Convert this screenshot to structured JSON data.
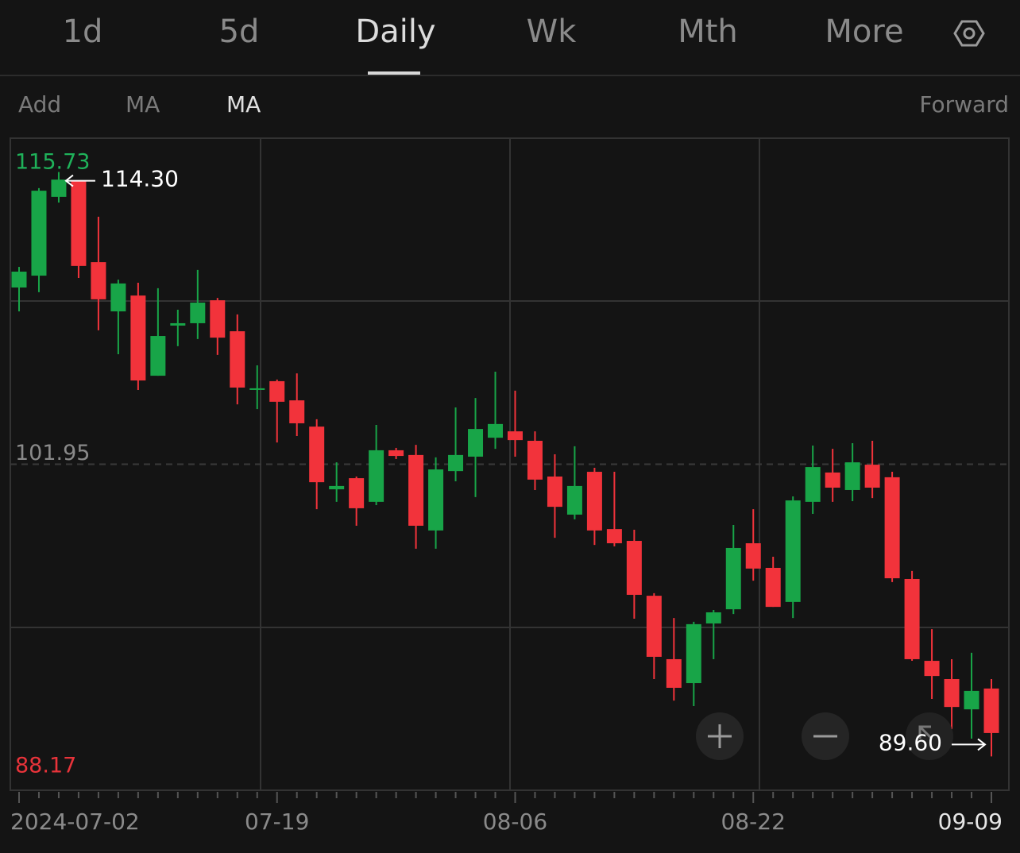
{
  "tabs": [
    "1d",
    "5d",
    "Daily",
    "Wk",
    "Mth",
    "More"
  ],
  "toolbar": {
    "left": [
      "Add",
      "MA",
      "MA"
    ],
    "right": "Forward"
  },
  "chart_data": {
    "type": "candlestick",
    "categories": [
      "2024-07-02",
      null,
      null,
      null,
      null,
      null,
      null,
      null,
      null,
      null,
      null,
      null,
      null,
      "07-19",
      null,
      null,
      null,
      null,
      null,
      null,
      null,
      null,
      null,
      null,
      null,
      "08-06",
      null,
      null,
      null,
      null,
      null,
      null,
      null,
      null,
      null,
      null,
      null,
      "08-22",
      null,
      null,
      null,
      null,
      null,
      null,
      null,
      null,
      null,
      null,
      null,
      "09-09"
    ],
    "open": [
      109.42,
      109.92,
      113.25,
      113.92,
      110.49,
      108.41,
      109.08,
      105.69,
      107.81,
      107.91,
      108.88,
      107.57,
      105.09,
      105.46,
      104.65,
      103.54,
      100.89,
      101.36,
      100.36,
      102.54,
      102.34,
      99.15,
      101.66,
      102.27,
      103.07,
      103.34,
      102.94,
      101.43,
      99.82,
      101.63,
      99.21,
      98.71,
      96.39,
      93.71,
      92.7,
      95.22,
      95.82,
      98.61,
      97.57,
      96.13,
      100.36,
      101.6,
      100.86,
      101.93,
      101.4,
      97.1,
      93.64,
      92.87,
      91.59,
      92.47
    ],
    "high": [
      110.29,
      113.62,
      114.3,
      113.92,
      112.41,
      109.75,
      109.62,
      109.39,
      108.48,
      110.16,
      108.98,
      108.28,
      106.13,
      105.53,
      105.79,
      103.85,
      102.03,
      101.43,
      103.61,
      102.64,
      102.77,
      102.24,
      104.35,
      104.75,
      105.86,
      105.06,
      103.34,
      102.37,
      102.71,
      101.8,
      101.63,
      99.18,
      96.5,
      95.45,
      95.29,
      95.79,
      99.38,
      100.05,
      98.04,
      100.59,
      102.74,
      102.6,
      102.84,
      102.94,
      101.63,
      97.44,
      94.98,
      93.71,
      93.98,
      92.87
    ],
    "low": [
      108.41,
      109.22,
      113.01,
      109.82,
      107.61,
      106.6,
      105.09,
      105.69,
      106.94,
      107.24,
      106.57,
      104.48,
      104.28,
      102.87,
      103.14,
      100.05,
      100.36,
      99.35,
      100.22,
      102.17,
      98.38,
      98.38,
      101.23,
      100.56,
      102.6,
      102.27,
      100.86,
      98.84,
      99.62,
      98.54,
      98.48,
      95.42,
      92.87,
      91.96,
      91.73,
      93.71,
      95.62,
      97.03,
      95.92,
      95.45,
      99.85,
      100.36,
      100.39,
      100.52,
      96.97,
      93.64,
      92.03,
      90.75,
      90.35,
      89.6
    ],
    "close": [
      110.09,
      113.51,
      113.98,
      110.33,
      108.92,
      109.59,
      105.49,
      107.37,
      107.91,
      108.78,
      107.3,
      105.19,
      105.16,
      104.59,
      103.68,
      101.19,
      101.03,
      100.09,
      102.54,
      102.3,
      99.35,
      101.73,
      102.34,
      103.44,
      103.65,
      102.97,
      101.3,
      100.15,
      101.03,
      99.15,
      98.61,
      96.43,
      93.81,
      92.5,
      95.19,
      95.69,
      98.41,
      97.54,
      95.92,
      100.42,
      101.83,
      100.96,
      102.03,
      100.96,
      97.13,
      93.71,
      93.0,
      91.69,
      92.37,
      90.59
    ],
    "up_color": "#18a548",
    "down_color": "#f2333b",
    "ylim": [
      88.17,
      115.73
    ],
    "yticks": [
      88.17,
      101.95,
      115.73
    ],
    "ytick_colors": [
      "#e8333a",
      "#8a8a8a",
      "#1fb25a"
    ],
    "max_marker": {
      "value": 114.3,
      "label": "114.30",
      "index": 2
    },
    "min_marker": {
      "value": 89.6,
      "label": "89.60",
      "index": 49
    }
  }
}
